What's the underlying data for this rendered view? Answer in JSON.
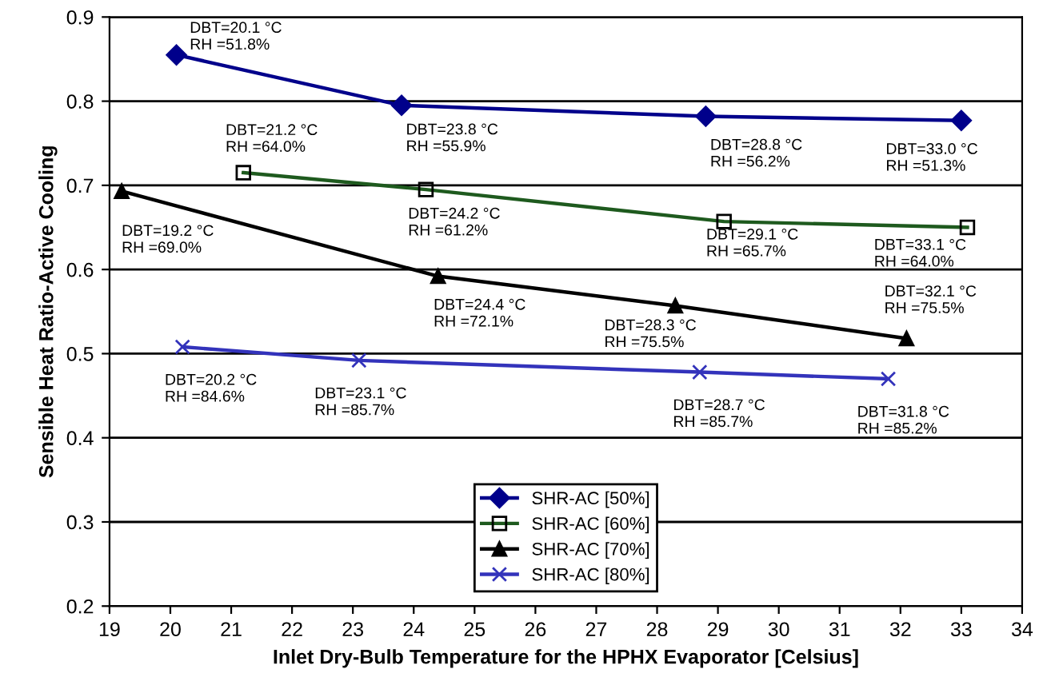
{
  "chart_data": {
    "type": "line",
    "xlabel": "Inlet Dry-Bulb Temperature for the HPHX Evaporator [Celsius]",
    "ylabel": "Sensible Heat Ratio-Active Cooling",
    "xlim": [
      19,
      34
    ],
    "xticks": [
      19,
      20,
      21,
      22,
      23,
      24,
      25,
      26,
      27,
      28,
      29,
      30,
      31,
      32,
      33,
      34
    ],
    "ylim": [
      0.2,
      0.9
    ],
    "yticks": [
      0.2,
      0.3,
      0.4,
      0.5,
      0.6,
      0.7,
      0.8,
      0.9
    ],
    "grid": "y",
    "legend": "bottom",
    "series": [
      {
        "name": "SHR-AC [50%]",
        "color": "#00008b",
        "marker": "diamond",
        "x": [
          20.1,
          23.8,
          28.8,
          33.0
        ],
        "values": [
          0.855,
          0.795,
          0.782,
          0.777
        ]
      },
      {
        "name": "SHR-AC [60%]",
        "color": "#1e5a1e",
        "marker": "square",
        "x": [
          21.2,
          24.2,
          29.1,
          33.1
        ],
        "values": [
          0.715,
          0.695,
          0.657,
          0.65
        ]
      },
      {
        "name": "SHR-AC [70%]",
        "color": "#000000",
        "marker": "triangle",
        "x": [
          19.2,
          24.4,
          28.3,
          32.1
        ],
        "values": [
          0.693,
          0.592,
          0.557,
          0.518
        ]
      },
      {
        "name": "SHR-AC [80%]",
        "color": "#3333bb",
        "marker": "cross",
        "x": [
          20.2,
          23.1,
          28.7,
          31.8
        ],
        "values": [
          0.508,
          0.492,
          0.478,
          0.47
        ]
      }
    ],
    "annotations": [
      {
        "text": "DBT=20.1 °C\nRH =51.8%",
        "x": 20.1,
        "y": 0.855
      },
      {
        "text": "DBT=23.8 °C\nRH =55.9%",
        "x": 23.8,
        "y": 0.795
      },
      {
        "text": "DBT=28.8 °C\nRH =56.2%",
        "x": 28.8,
        "y": 0.782
      },
      {
        "text": "DBT=33.0 °C\nRH =51.3%",
        "x": 33.0,
        "y": 0.777
      },
      {
        "text": "DBT=21.2 °C\nRH =64.0%",
        "x": 21.2,
        "y": 0.715
      },
      {
        "text": "DBT=24.2 °C\nRH =61.2%",
        "x": 24.2,
        "y": 0.695
      },
      {
        "text": "DBT=29.1 °C\nRH =65.7%",
        "x": 29.1,
        "y": 0.657
      },
      {
        "text": "DBT=33.1 °C\nRH =64.0%",
        "x": 33.1,
        "y": 0.65
      },
      {
        "text": "DBT=19.2 °C\nRH =69.0%",
        "x": 19.2,
        "y": 0.693
      },
      {
        "text": "DBT=24.4 °C\nRH =72.1%",
        "x": 24.4,
        "y": 0.592
      },
      {
        "text": "DBT=28.3 °C\nRH =75.5%",
        "x": 28.3,
        "y": 0.557
      },
      {
        "text": "DBT=32.1 °C\nRH =75.5%",
        "x": 32.1,
        "y": 0.518
      },
      {
        "text": "DBT=20.2 °C\nRH =84.6%",
        "x": 20.2,
        "y": 0.508
      },
      {
        "text": "DBT=23.1 °C\nRH =85.7%",
        "x": 23.1,
        "y": 0.492
      },
      {
        "text": "DBT=28.7 °C\nRH =85.7%",
        "x": 28.7,
        "y": 0.478
      },
      {
        "text": "DBT=31.8 °C\nRH =85.2%",
        "x": 31.8,
        "y": 0.47
      }
    ]
  }
}
